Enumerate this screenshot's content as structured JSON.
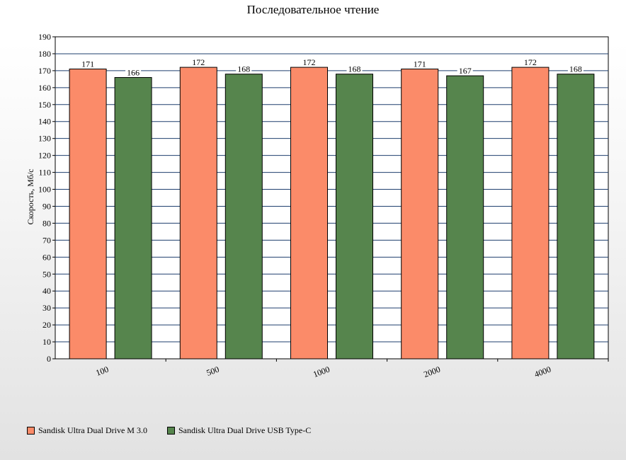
{
  "chart_data": {
    "type": "bar",
    "title": "Последовательное чтение",
    "ylabel": "Скорость, Мб/с",
    "xlabel": "",
    "ylim": [
      0,
      190
    ],
    "ytick_step": 10,
    "grid": true,
    "legend_position": "bottom-left",
    "categories": [
      "100",
      "500",
      "1000",
      "2000",
      "4000"
    ],
    "series": [
      {
        "name": "Sandisk Ultra Dual Drive M 3.0",
        "color": "#fb8b69",
        "values": [
          171,
          172,
          172,
          171,
          172
        ]
      },
      {
        "name": "Sandisk Ultra Dual Drive USB Type-C",
        "color": "#56854d",
        "values": [
          166,
          168,
          168,
          167,
          168
        ]
      }
    ]
  }
}
